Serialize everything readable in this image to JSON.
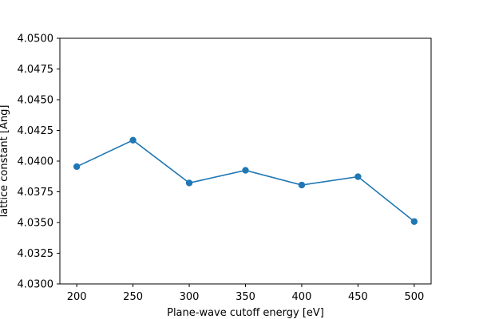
{
  "chart_data": {
    "type": "line",
    "title": "",
    "xlabel": "Plane-wave cutoff energy [eV]",
    "ylabel": "lattice constant [Ang]",
    "x": [
      200,
      250,
      300,
      350,
      400,
      450,
      500
    ],
    "series": [
      {
        "values": [
          4.03955,
          4.0417,
          4.03822,
          4.03925,
          4.03805,
          4.03873,
          4.03508
        ],
        "color": "#1f77b4",
        "marker": "circle"
      }
    ],
    "xlim": [
      185,
      515
    ],
    "ylim": [
      4.03,
      4.05
    ],
    "xticks": [
      "200",
      "250",
      "300",
      "350",
      "400",
      "450",
      "500"
    ],
    "yticks": [
      "4.0300",
      "4.0325",
      "4.0350",
      "4.0375",
      "4.0400",
      "4.0425",
      "4.0450",
      "4.0475",
      "4.0500"
    ],
    "grid": false,
    "legend": "none"
  }
}
